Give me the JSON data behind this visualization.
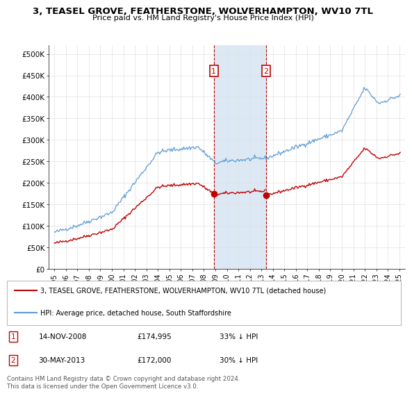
{
  "title": "3, TEASEL GROVE, FEATHERSTONE, WOLVERHAMPTON, WV10 7TL",
  "subtitle": "Price paid vs. HM Land Registry's House Price Index (HPI)",
  "legend_line1": "3, TEASEL GROVE, FEATHERSTONE, WOLVERHAMPTON, WV10 7TL (detached house)",
  "legend_line2": "HPI: Average price, detached house, South Staffordshire",
  "sale1_date": "14-NOV-2008",
  "sale1_price": "£174,995",
  "sale1_note": "33% ↓ HPI",
  "sale2_date": "30-MAY-2013",
  "sale2_price": "£172,000",
  "sale2_note": "30% ↓ HPI",
  "footer": "Contains HM Land Registry data © Crown copyright and database right 2024.\nThis data is licensed under the Open Government Licence v3.0.",
  "hpi_color": "#5b9bd5",
  "sale_color": "#c00000",
  "highlight_color": "#dce9f5",
  "sale1_x": 2008.87,
  "sale2_x": 2013.41,
  "sale1_y": 174995,
  "sale2_y": 172000,
  "xlim": [
    1994.5,
    2025.5
  ],
  "ylim": [
    0,
    520000
  ],
  "yticks": [
    0,
    50000,
    100000,
    150000,
    200000,
    250000,
    300000,
    350000,
    400000,
    450000,
    500000
  ],
  "ytick_labels": [
    "£0",
    "£50K",
    "£100K",
    "£150K",
    "£200K",
    "£250K",
    "£300K",
    "£350K",
    "£400K",
    "£450K",
    "£500K"
  ],
  "xticks": [
    1995,
    1996,
    1997,
    1998,
    1999,
    2000,
    2001,
    2002,
    2003,
    2004,
    2005,
    2006,
    2007,
    2008,
    2009,
    2010,
    2011,
    2012,
    2013,
    2014,
    2015,
    2016,
    2017,
    2018,
    2019,
    2020,
    2021,
    2022,
    2023,
    2024,
    2025
  ]
}
